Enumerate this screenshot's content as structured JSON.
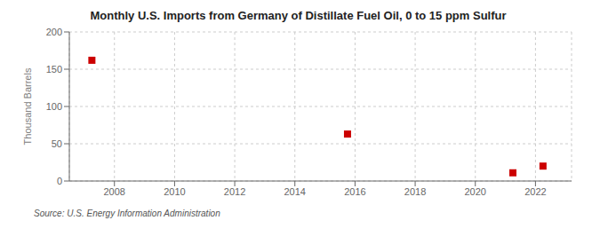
{
  "chart_data": {
    "type": "scatter",
    "title": "Monthly U.S. Imports from Germany of Distillate Fuel Oil, 0 to 15 ppm Sulfur",
    "ylabel": "Thousand Barrels",
    "source": "Source: U.S. Energy Information Administration",
    "x": [
      2007.25,
      2015.75,
      2021.25,
      2022.25
    ],
    "values": [
      162,
      63,
      11,
      20
    ],
    "color": "#cc0000",
    "marker": "square",
    "xlim": [
      2006.5,
      2023.2
    ],
    "ylim": [
      0,
      200
    ],
    "xticks": [
      2008,
      2010,
      2012,
      2014,
      2016,
      2018,
      2020,
      2022
    ],
    "yticks": [
      0,
      50,
      100,
      150,
      200
    ],
    "grid": true
  }
}
